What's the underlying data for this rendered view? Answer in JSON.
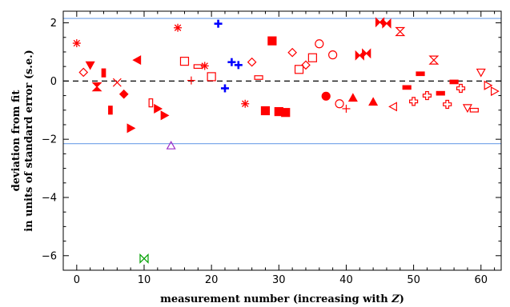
{
  "chart_data": {
    "type": "scatter",
    "xlabel": "measurement number (increasing with ",
    "xlabel_italic": "Z",
    "xlabel_tail": ")",
    "ylabel_line1": "deviation from fit",
    "ylabel_line2": "in units of standard error (s.e.)",
    "xlim": [
      -2,
      63
    ],
    "ylim": [
      -6.5,
      2.4
    ],
    "xticks": [
      0,
      10,
      20,
      30,
      40,
      50,
      60
    ],
    "yticks": [
      -6,
      -4,
      -2,
      0,
      2
    ],
    "xtick_labels": [
      "0",
      "10",
      "20",
      "30",
      "40",
      "50",
      "60"
    ],
    "ytick_labels": [
      "−6",
      "−4",
      "−2",
      "0",
      "2"
    ],
    "reference_lines": [
      {
        "y": 2.15,
        "style": "solid",
        "color": "#6fa0e8"
      },
      {
        "y": 0,
        "style": "dashed",
        "color": "#000000"
      },
      {
        "y": -2.15,
        "style": "solid",
        "color": "#6fa0e8"
      }
    ],
    "points": [
      {
        "x": 0,
        "y": 1.3,
        "marker": "asterisk",
        "color": "#ff0000"
      },
      {
        "x": 1,
        "y": 0.3,
        "marker": "diamond-open",
        "color": "#ff0000"
      },
      {
        "x": 2,
        "y": 0.55,
        "marker": "triangle-down-filled",
        "color": "#ff0000"
      },
      {
        "x": 3,
        "y": -0.2,
        "marker": "hourglass-filled",
        "color": "#ff0000"
      },
      {
        "x": 4,
        "y": 0.28,
        "marker": "vbar-filled",
        "color": "#ff0000"
      },
      {
        "x": 5,
        "y": -1.0,
        "marker": "vbar-filled",
        "color": "#ff0000"
      },
      {
        "x": 6,
        "y": -0.05,
        "marker": "cross-x",
        "color": "#ff0000"
      },
      {
        "x": 7,
        "y": -0.45,
        "marker": "diamond-filled",
        "color": "#ff0000"
      },
      {
        "x": 8,
        "y": -1.62,
        "marker": "triangle-right-filled",
        "color": "#ff0000"
      },
      {
        "x": 9,
        "y": 0.72,
        "marker": "triangle-left-filled",
        "color": "#ff0000"
      },
      {
        "x": 10,
        "y": -6.1,
        "marker": "bowtie-open",
        "color": "#00a000"
      },
      {
        "x": 11,
        "y": -0.75,
        "marker": "vbar-open",
        "color": "#ff0000"
      },
      {
        "x": 12,
        "y": -0.95,
        "marker": "triangle-right-filled",
        "color": "#ff0000"
      },
      {
        "x": 13,
        "y": -1.18,
        "marker": "triangle-right-filled",
        "color": "#ff0000"
      },
      {
        "x": 14,
        "y": -2.22,
        "marker": "triangle-up-open",
        "color": "#a030c8"
      },
      {
        "x": 15,
        "y": 1.83,
        "marker": "asterisk",
        "color": "#ff0000"
      },
      {
        "x": 16,
        "y": 0.68,
        "marker": "square-open",
        "color": "#ff0000"
      },
      {
        "x": 17,
        "y": 0.02,
        "marker": "plus",
        "color": "#ff0000"
      },
      {
        "x": 18,
        "y": 0.5,
        "marker": "hbar-open",
        "color": "#ff0000"
      },
      {
        "x": 19,
        "y": 0.52,
        "marker": "asterisk",
        "color": "#ff0000"
      },
      {
        "x": 20,
        "y": 0.15,
        "marker": "square-open",
        "color": "#ff0000"
      },
      {
        "x": 21,
        "y": 1.97,
        "marker": "plus-thick",
        "color": "#0000ff"
      },
      {
        "x": 22,
        "y": -0.25,
        "marker": "plus-thick",
        "color": "#0000ff"
      },
      {
        "x": 23,
        "y": 0.65,
        "marker": "plus-thick",
        "color": "#0000ff"
      },
      {
        "x": 24,
        "y": 0.55,
        "marker": "plus-thick",
        "color": "#0000ff"
      },
      {
        "x": 25,
        "y": -0.78,
        "marker": "asterisk",
        "color": "#ff0000"
      },
      {
        "x": 26,
        "y": 0.65,
        "marker": "diamond-open",
        "color": "#ff0000"
      },
      {
        "x": 27,
        "y": 0.12,
        "marker": "hbar-open",
        "color": "#ff0000"
      },
      {
        "x": 28,
        "y": -1.02,
        "marker": "square-filled",
        "color": "#ff0000"
      },
      {
        "x": 29,
        "y": 1.38,
        "marker": "square-filled",
        "color": "#ff0000"
      },
      {
        "x": 30,
        "y": -1.05,
        "marker": "square-filled",
        "color": "#ff0000"
      },
      {
        "x": 31,
        "y": -1.08,
        "marker": "square-filled",
        "color": "#ff0000"
      },
      {
        "x": 32,
        "y": 0.98,
        "marker": "diamond-open",
        "color": "#ff0000"
      },
      {
        "x": 33,
        "y": 0.4,
        "marker": "square-open",
        "color": "#ff0000"
      },
      {
        "x": 34,
        "y": 0.55,
        "marker": "diamond-open",
        "color": "#ff0000"
      },
      {
        "x": 35,
        "y": 0.8,
        "marker": "square-open",
        "color": "#ff0000"
      },
      {
        "x": 36,
        "y": 1.28,
        "marker": "circle-open",
        "color": "#ff0000"
      },
      {
        "x": 37,
        "y": -0.52,
        "marker": "circle-filled",
        "color": "#ff0000"
      },
      {
        "x": 38,
        "y": 0.9,
        "marker": "circle-open",
        "color": "#ff0000"
      },
      {
        "x": 39,
        "y": -0.78,
        "marker": "circle-open",
        "color": "#ff0000"
      },
      {
        "x": 40,
        "y": -0.95,
        "marker": "plus",
        "color": "#ff0000"
      },
      {
        "x": 41,
        "y": -0.58,
        "marker": "triangle-up-filled",
        "color": "#ff0000"
      },
      {
        "x": 42,
        "y": 0.88,
        "marker": "bowtie-filled",
        "color": "#ff0000"
      },
      {
        "x": 43,
        "y": 0.95,
        "marker": "bowtie-filled",
        "color": "#ff0000"
      },
      {
        "x": 44,
        "y": -0.72,
        "marker": "triangle-up-filled",
        "color": "#ff0000"
      },
      {
        "x": 45,
        "y": 2.02,
        "marker": "bowtie-filled",
        "color": "#ff0000"
      },
      {
        "x": 46,
        "y": 1.98,
        "marker": "bowtie-filled",
        "color": "#ff0000"
      },
      {
        "x": 47,
        "y": -0.88,
        "marker": "triangle-left-open",
        "color": "#ff0000"
      },
      {
        "x": 48,
        "y": 1.7,
        "marker": "hourglass-open",
        "color": "#ff0000"
      },
      {
        "x": 49,
        "y": -0.22,
        "marker": "hbar-filled",
        "color": "#ff0000"
      },
      {
        "x": 50,
        "y": -0.7,
        "marker": "plus-open",
        "color": "#ff0000"
      },
      {
        "x": 51,
        "y": 0.25,
        "marker": "hbar-filled",
        "color": "#ff0000"
      },
      {
        "x": 52,
        "y": -0.5,
        "marker": "plus-open",
        "color": "#ff0000"
      },
      {
        "x": 53,
        "y": 0.72,
        "marker": "hourglass-open",
        "color": "#ff0000"
      },
      {
        "x": 54,
        "y": -0.42,
        "marker": "hbar-filled",
        "color": "#ff0000"
      },
      {
        "x": 55,
        "y": -0.8,
        "marker": "plus-open",
        "color": "#ff0000"
      },
      {
        "x": 56,
        "y": -0.03,
        "marker": "hbar-filled",
        "color": "#ff0000"
      },
      {
        "x": 57,
        "y": -0.25,
        "marker": "plus-open",
        "color": "#ff0000"
      },
      {
        "x": 58,
        "y": -0.92,
        "marker": "triangle-down-open",
        "color": "#ff0000"
      },
      {
        "x": 59,
        "y": -1.0,
        "marker": "hbar-open",
        "color": "#ff0000"
      },
      {
        "x": 60,
        "y": 0.3,
        "marker": "triangle-down-open",
        "color": "#ff0000"
      },
      {
        "x": 61,
        "y": -0.15,
        "marker": "triangle-right-open",
        "color": "#ff0000"
      },
      {
        "x": 62,
        "y": -0.35,
        "marker": "triangle-right-open",
        "color": "#ff0000"
      }
    ]
  }
}
